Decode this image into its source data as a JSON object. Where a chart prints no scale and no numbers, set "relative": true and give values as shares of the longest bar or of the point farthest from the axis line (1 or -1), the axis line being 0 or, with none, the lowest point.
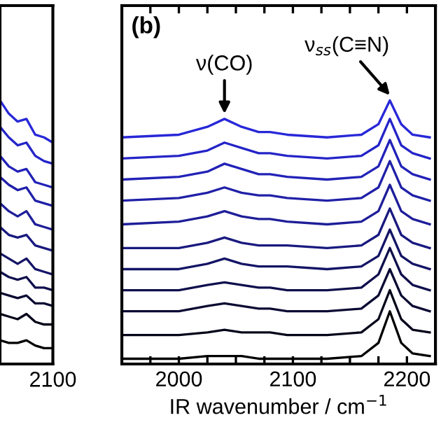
{
  "chart_data": [
    {
      "type": "line",
      "relative": true,
      "tick_labels": "x",
      "legend": false,
      "grid": false,
      "annotations": [
        "2100"
      ],
      "categories": [
        null,
        null,
        null,
        null,
        null,
        null,
        null
      ],
      "series": [
        {
          "color": "#000000",
          "values": [
            0.09,
            0.08,
            0.08,
            0.09,
            0.07,
            0.06,
            0.06
          ]
        },
        {
          "color": "#05051a",
          "values": [
            0.19,
            0.18,
            0.17,
            0.19,
            0.16,
            0.15,
            0.15
          ]
        },
        {
          "color": "#0a0a33",
          "values": [
            0.27,
            0.26,
            0.25,
            0.26,
            0.23,
            0.23,
            0.22
          ]
        },
        {
          "color": "#0f0f4d",
          "values": [
            0.35,
            0.33,
            0.32,
            0.33,
            0.29,
            0.29,
            0.28
          ]
        },
        {
          "color": "#141466",
          "values": [
            0.42,
            0.4,
            0.38,
            0.4,
            0.36,
            0.35,
            0.34
          ]
        },
        {
          "color": "#191980",
          "values": [
            0.52,
            0.49,
            0.48,
            0.49,
            0.45,
            0.44,
            0.43
          ]
        },
        {
          "color": "#1e1e99",
          "values": [
            0.61,
            0.58,
            0.56,
            0.58,
            0.53,
            0.52,
            0.51
          ]
        },
        {
          "color": "#2020a8",
          "values": [
            0.71,
            0.68,
            0.66,
            0.67,
            0.62,
            0.61,
            0.6
          ]
        },
        {
          "color": "#2222b8",
          "values": [
            0.79,
            0.75,
            0.73,
            0.74,
            0.69,
            0.68,
            0.67
          ]
        },
        {
          "color": "#2424c8",
          "values": [
            0.9,
            0.86,
            0.83,
            0.84,
            0.79,
            0.77,
            0.76
          ]
        },
        {
          "color": "#2828d8",
          "values": [
            1.0,
            0.95,
            0.92,
            0.93,
            0.87,
            0.86,
            0.84
          ]
        }
      ]
    },
    {
      "type": "line",
      "relative": true,
      "tick_labels": "x",
      "legend": false,
      "grid": false,
      "xlabel": "IR wavenumber / cm$^{−1}$",
      "xlim": [
        1950,
        2225
      ],
      "xticks": [
        {
          "value": 1975,
          "label": null
        },
        2000,
        {
          "value": 2025,
          "label": null
        },
        {
          "value": 2050,
          "label": null
        },
        {
          "value": 2075,
          "label": null
        },
        2100,
        {
          "value": 2125,
          "label": null
        },
        {
          "value": 2150,
          "label": null
        },
        {
          "value": 2175,
          "label": null
        },
        2200
      ],
      "annotations": [
        "(b)",
        {
          "text": "ν(CO)",
          "x": 2040,
          "y": 0.93
        },
        {
          "text": "ν$_{ss}$(C≡N)",
          "x": 2185,
          "y": 1.0
        }
      ],
      "x": [
        1950,
        2000,
        2025,
        2040,
        2055,
        2070,
        2080,
        2095,
        2130,
        2160,
        2175,
        2185,
        2195,
        2205,
        2220
      ],
      "series": [
        {
          "color": "#000000",
          "values": [
            0.02,
            0.02,
            0.03,
            0.03,
            0.03,
            0.02,
            0.02,
            0.02,
            0.02,
            0.03,
            0.08,
            0.2,
            0.08,
            0.04,
            0.03
          ]
        },
        {
          "color": "#05051a",
          "values": [
            0.11,
            0.11,
            0.12,
            0.13,
            0.12,
            0.12,
            0.12,
            0.11,
            0.11,
            0.12,
            0.17,
            0.28,
            0.17,
            0.13,
            0.12
          ]
        },
        {
          "color": "#0a0a33",
          "values": [
            0.2,
            0.2,
            0.22,
            0.23,
            0.22,
            0.21,
            0.21,
            0.2,
            0.2,
            0.21,
            0.26,
            0.36,
            0.26,
            0.22,
            0.2
          ]
        },
        {
          "color": "#0f0f4d",
          "values": [
            0.28,
            0.28,
            0.3,
            0.31,
            0.3,
            0.29,
            0.29,
            0.28,
            0.28,
            0.29,
            0.34,
            0.44,
            0.34,
            0.3,
            0.28
          ]
        },
        {
          "color": "#141466",
          "values": [
            0.36,
            0.36,
            0.38,
            0.4,
            0.38,
            0.37,
            0.37,
            0.37,
            0.36,
            0.37,
            0.41,
            0.51,
            0.41,
            0.38,
            0.36
          ]
        },
        {
          "color": "#191980",
          "values": [
            0.44,
            0.44,
            0.46,
            0.48,
            0.46,
            0.45,
            0.45,
            0.45,
            0.44,
            0.45,
            0.49,
            0.59,
            0.49,
            0.46,
            0.44
          ]
        },
        {
          "color": "#1e1e99",
          "values": [
            0.53,
            0.54,
            0.56,
            0.58,
            0.56,
            0.55,
            0.55,
            0.54,
            0.53,
            0.54,
            0.58,
            0.68,
            0.58,
            0.55,
            0.53
          ]
        },
        {
          "color": "#2020a8",
          "values": [
            0.62,
            0.63,
            0.65,
            0.67,
            0.65,
            0.64,
            0.64,
            0.63,
            0.62,
            0.63,
            0.67,
            0.77,
            0.67,
            0.64,
            0.62
          ]
        },
        {
          "color": "#2222b8",
          "values": [
            0.7,
            0.71,
            0.73,
            0.76,
            0.74,
            0.72,
            0.72,
            0.71,
            0.7,
            0.71,
            0.75,
            0.85,
            0.75,
            0.72,
            0.7
          ]
        },
        {
          "color": "#2424c8",
          "values": [
            0.78,
            0.79,
            0.81,
            0.84,
            0.82,
            0.8,
            0.8,
            0.79,
            0.78,
            0.79,
            0.83,
            0.93,
            0.83,
            0.8,
            0.78
          ]
        },
        {
          "color": "#2828d8",
          "values": [
            0.86,
            0.87,
            0.9,
            0.93,
            0.9,
            0.88,
            0.88,
            0.87,
            0.86,
            0.87,
            0.91,
            1.0,
            0.91,
            0.87,
            0.86
          ]
        }
      ]
    }
  ]
}
